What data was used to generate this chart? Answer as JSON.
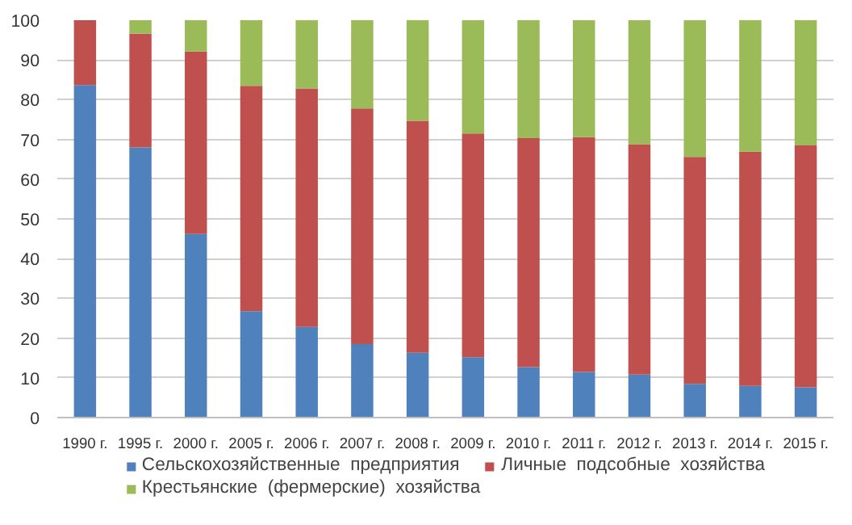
{
  "chart_data": {
    "type": "bar",
    "stacked": true,
    "categories": [
      "1990 г.",
      "1995 г.",
      "2000 г.",
      "2005 г.",
      "2006 г.",
      "2007 г.",
      "2008 г.",
      "2009 г.",
      "2010 г.",
      "2011 г.",
      "2012 г.",
      "2013 г.",
      "2014 г.",
      "2015 г."
    ],
    "series": [
      {
        "name": "Сельскохозяйственные  предприятия",
        "color": "#4f81bd",
        "values": [
          83.7,
          68.0,
          46.2,
          26.8,
          22.8,
          18.5,
          16.3,
          15.2,
          12.7,
          11.5,
          10.8,
          8.5,
          8.0,
          7.6
        ]
      },
      {
        "name": "Личные  подсобные  хозяйства",
        "color": "#c0504d",
        "values": [
          16.3,
          28.6,
          45.9,
          56.7,
          60.0,
          59.3,
          58.4,
          56.3,
          57.6,
          59.1,
          58.0,
          57.1,
          58.9,
          60.9
        ]
      },
      {
        "name": "Крестьянские  (фермерские)  хозяйства",
        "color": "#9bbb59",
        "values": [
          0,
          3.4,
          7.9,
          16.5,
          17.2,
          22.2,
          25.3,
          28.5,
          29.7,
          29.4,
          31.2,
          34.4,
          33.1,
          31.5
        ]
      }
    ],
    "ylim": [
      0,
      100
    ],
    "yticks": [
      0,
      10,
      20,
      30,
      40,
      50,
      60,
      70,
      80,
      90,
      100
    ],
    "grid": "y",
    "legend": "bottom"
  }
}
